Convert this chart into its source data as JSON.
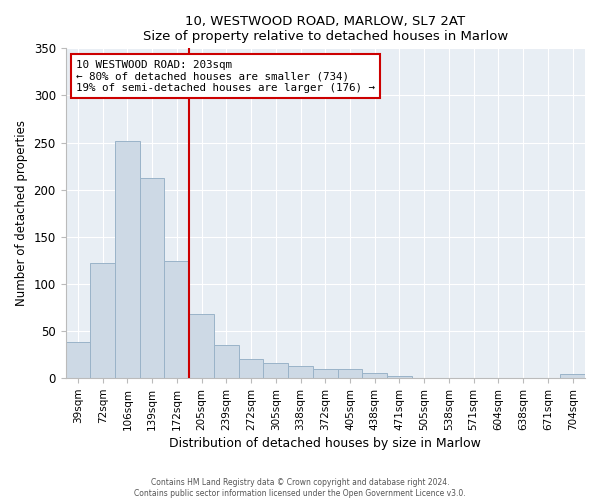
{
  "title_line1": "10, WESTWOOD ROAD, MARLOW, SL7 2AT",
  "title_line2": "Size of property relative to detached houses in Marlow",
  "xlabel": "Distribution of detached houses by size in Marlow",
  "ylabel": "Number of detached properties",
  "bar_labels": [
    "39sqm",
    "72sqm",
    "106sqm",
    "139sqm",
    "172sqm",
    "205sqm",
    "239sqm",
    "272sqm",
    "305sqm",
    "338sqm",
    "372sqm",
    "405sqm",
    "438sqm",
    "471sqm",
    "505sqm",
    "538sqm",
    "571sqm",
    "604sqm",
    "638sqm",
    "671sqm",
    "704sqm"
  ],
  "bar_heights": [
    38,
    122,
    252,
    212,
    124,
    68,
    35,
    20,
    16,
    13,
    10,
    10,
    5,
    2,
    0,
    0,
    0,
    0,
    0,
    0,
    4
  ],
  "bar_color": "#cdd9e5",
  "bar_edge_color": "#9ab3c8",
  "vline_x": 5,
  "vline_color": "#cc0000",
  "ylim": [
    0,
    350
  ],
  "yticks": [
    0,
    50,
    100,
    150,
    200,
    250,
    300,
    350
  ],
  "annotation_title": "10 WESTWOOD ROAD: 203sqm",
  "annotation_line1": "← 80% of detached houses are smaller (734)",
  "annotation_line2": "19% of semi-detached houses are larger (176) →",
  "annotation_box_color": "#ffffff",
  "annotation_box_edge": "#cc0000",
  "footer_line1": "Contains HM Land Registry data © Crown copyright and database right 2024.",
  "footer_line2": "Contains public sector information licensed under the Open Government Licence v3.0.",
  "background_color": "#ffffff",
  "plot_background": "#e8eef4"
}
